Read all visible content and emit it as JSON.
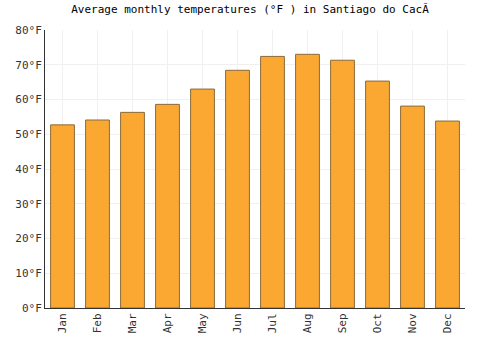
{
  "chart_data": {
    "type": "bar",
    "title": "Average monthly temperatures (°F ) in Santiago do CacÃ",
    "categories": [
      "Jan",
      "Feb",
      "Mar",
      "Apr",
      "May",
      "Jun",
      "Jul",
      "Aug",
      "Sep",
      "Oct",
      "Nov",
      "Dec"
    ],
    "values": [
      52.7,
      54.1,
      56.3,
      58.6,
      63.0,
      68.4,
      72.4,
      73.0,
      71.3,
      65.3,
      58.1,
      53.8
    ],
    "color": "#fba832",
    "ylim": [
      0,
      80
    ],
    "yticks": [
      {
        "value": 0,
        "label": "0°F"
      },
      {
        "value": 10,
        "label": "10°F"
      },
      {
        "value": 20,
        "label": "20°F"
      },
      {
        "value": 30,
        "label": "30°F"
      },
      {
        "value": 40,
        "label": "40°F"
      },
      {
        "value": 50,
        "label": "50°F"
      },
      {
        "value": 60,
        "label": "60°F"
      },
      {
        "value": 70,
        "label": "70°F"
      },
      {
        "value": 80,
        "label": "80°F"
      }
    ],
    "grid": true
  }
}
